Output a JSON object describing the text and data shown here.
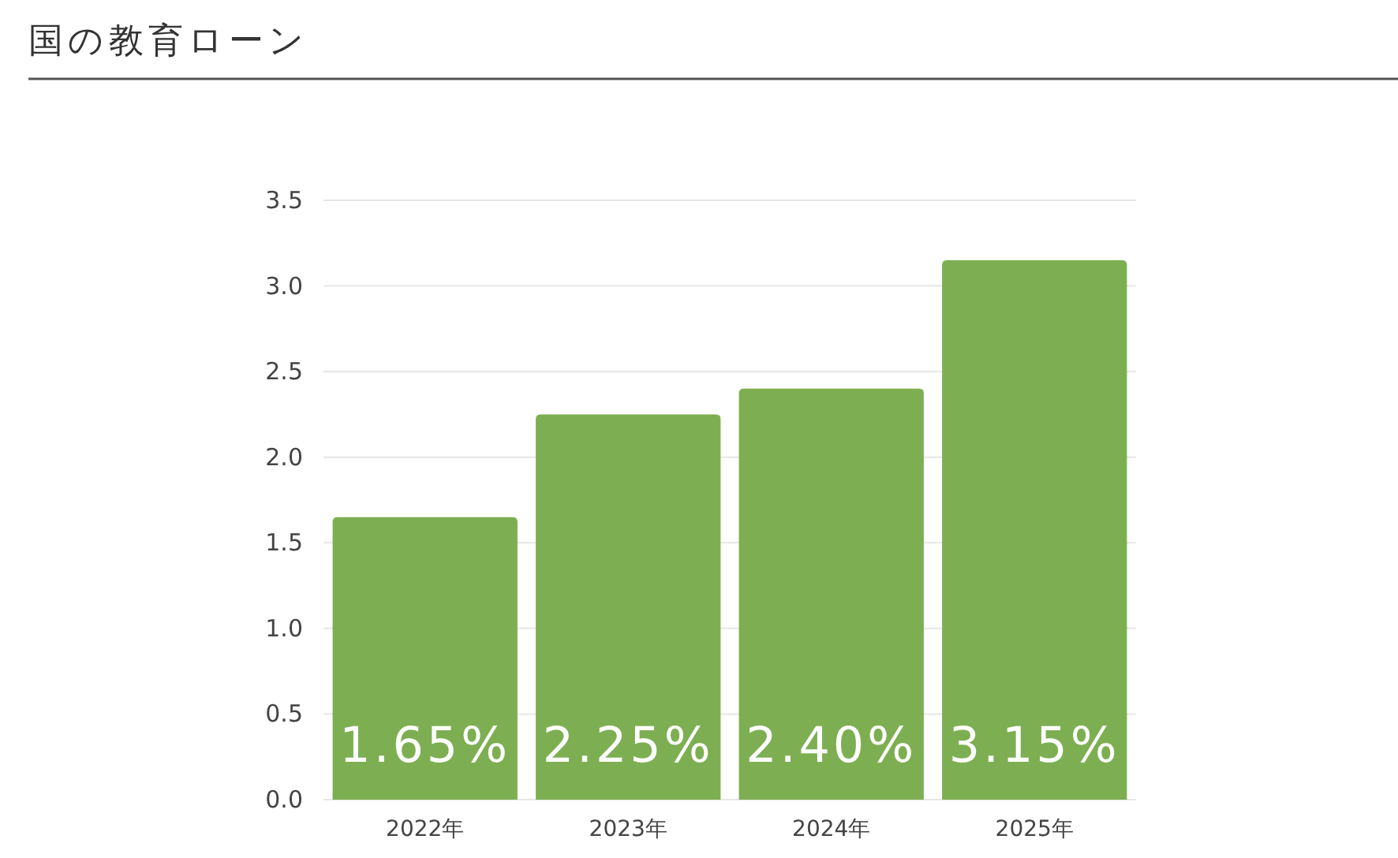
{
  "chart_data": {
    "type": "bar",
    "title": "国の教育ローン",
    "categories": [
      "2022年",
      "2023年",
      "2024年",
      "2025年"
    ],
    "values": [
      1.65,
      2.25,
      2.4,
      3.15
    ],
    "value_labels": [
      "1.65%",
      "2.25%",
      "2.40%",
      "3.15%"
    ],
    "color": "#7daf52",
    "ylim": [
      0,
      3.5
    ],
    "yticks": [
      {
        "value": 0,
        "label": "0.0"
      },
      0.5,
      {
        "value": 1,
        "label": "1.0"
      },
      1.5,
      {
        "value": 2,
        "label": "2.0"
      },
      2.5,
      {
        "value": 3,
        "label": "3.0"
      },
      3.5
    ],
    "grid": "y"
  }
}
